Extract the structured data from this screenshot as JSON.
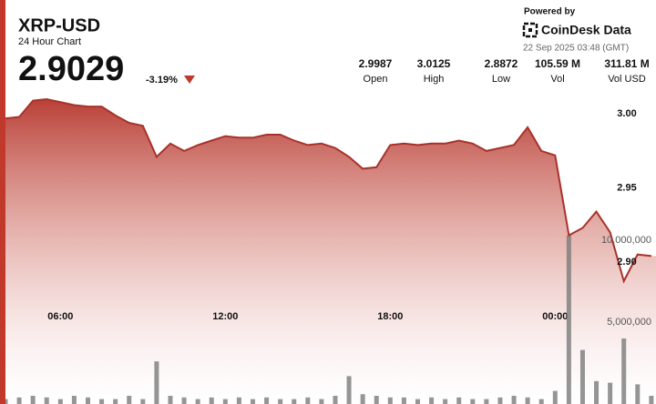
{
  "chart_data": {
    "type": "line",
    "title": "XRP-USD",
    "subtitle": "24 Hour Chart",
    "price": "2.9029",
    "change": "-3.19%",
    "stats": [
      {
        "value": "2.9987",
        "label": "Open"
      },
      {
        "value": "3.0125",
        "label": "High"
      },
      {
        "value": "2.8872",
        "label": "Low"
      },
      {
        "value": "105.59 M",
        "label": "Vol"
      },
      {
        "value": "311.81 M",
        "label": "Vol USD"
      }
    ],
    "powered_by": "Powered by",
    "brand": "CoinDesk Data",
    "timestamp": "22 Sep 2025 03:48 (GMT)",
    "x": [
      4.0,
      4.5,
      5.0,
      5.5,
      6.0,
      6.5,
      7.0,
      7.5,
      8.0,
      8.5,
      9.0,
      9.5,
      10.0,
      10.5,
      11.0,
      11.5,
      12.0,
      12.5,
      13.0,
      13.5,
      14.0,
      14.5,
      15.0,
      15.5,
      16.0,
      16.5,
      17.0,
      17.5,
      18.0,
      18.5,
      19.0,
      19.5,
      20.0,
      20.5,
      21.0,
      21.5,
      22.0,
      22.5,
      23.0,
      23.5,
      24.0,
      24.5,
      25.0,
      25.5,
      26.0,
      26.5,
      27.0,
      27.5
    ],
    "xlim": [
      4,
      27.67
    ],
    "xticks": [
      {
        "value": 6,
        "label": "06:00"
      },
      {
        "value": 12,
        "label": "12:00"
      },
      {
        "value": 18,
        "label": "18:00"
      },
      {
        "value": 24,
        "label": "00:00"
      }
    ],
    "series": [
      {
        "name": "Price",
        "color": "#a8322a",
        "values": [
          2.997,
          2.998,
          3.009,
          3.01,
          3.008,
          3.006,
          3.005,
          3.005,
          2.999,
          2.994,
          2.992,
          2.971,
          2.98,
          2.975,
          2.979,
          2.982,
          2.985,
          2.984,
          2.984,
          2.986,
          2.986,
          2.982,
          2.979,
          2.98,
          2.977,
          2.971,
          2.963,
          2.964,
          2.979,
          2.98,
          2.979,
          2.98,
          2.98,
          2.982,
          2.98,
          2.975,
          2.977,
          2.979,
          2.991,
          2.975,
          2.972,
          2.918,
          2.923,
          2.934,
          2.92,
          2.887,
          2.905,
          2.904
        ]
      },
      {
        "name": "Volume",
        "color": "#7a7a7a",
        "axis": "y2",
        "values": [
          300000,
          400000,
          500000,
          400000,
          300000,
          500000,
          400000,
          300000,
          300000,
          500000,
          300000,
          2600000,
          500000,
          400000,
          300000,
          400000,
          300000,
          400000,
          300000,
          400000,
          300000,
          300000,
          400000,
          300000,
          500000,
          1700000,
          600000,
          500000,
          400000,
          400000,
          300000,
          400000,
          300000,
          400000,
          300000,
          300000,
          400000,
          500000,
          400000,
          300000,
          800000,
          10300000,
          3300000,
          1400000,
          1300000,
          4000000,
          1200000,
          500000
        ]
      }
    ],
    "ylim": [
      2.804,
      3.077
    ],
    "yticks": [
      {
        "value": 3.0,
        "label": "3.00"
      },
      2.95,
      {
        "value": 2.9,
        "label": "2.90"
      }
    ],
    "y2lim": [
      0,
      24666667
    ],
    "y2ticks": [
      {
        "value": 5000000,
        "label": "5,000,000"
      },
      {
        "value": 10000000,
        "label": "10,000,000"
      }
    ]
  }
}
